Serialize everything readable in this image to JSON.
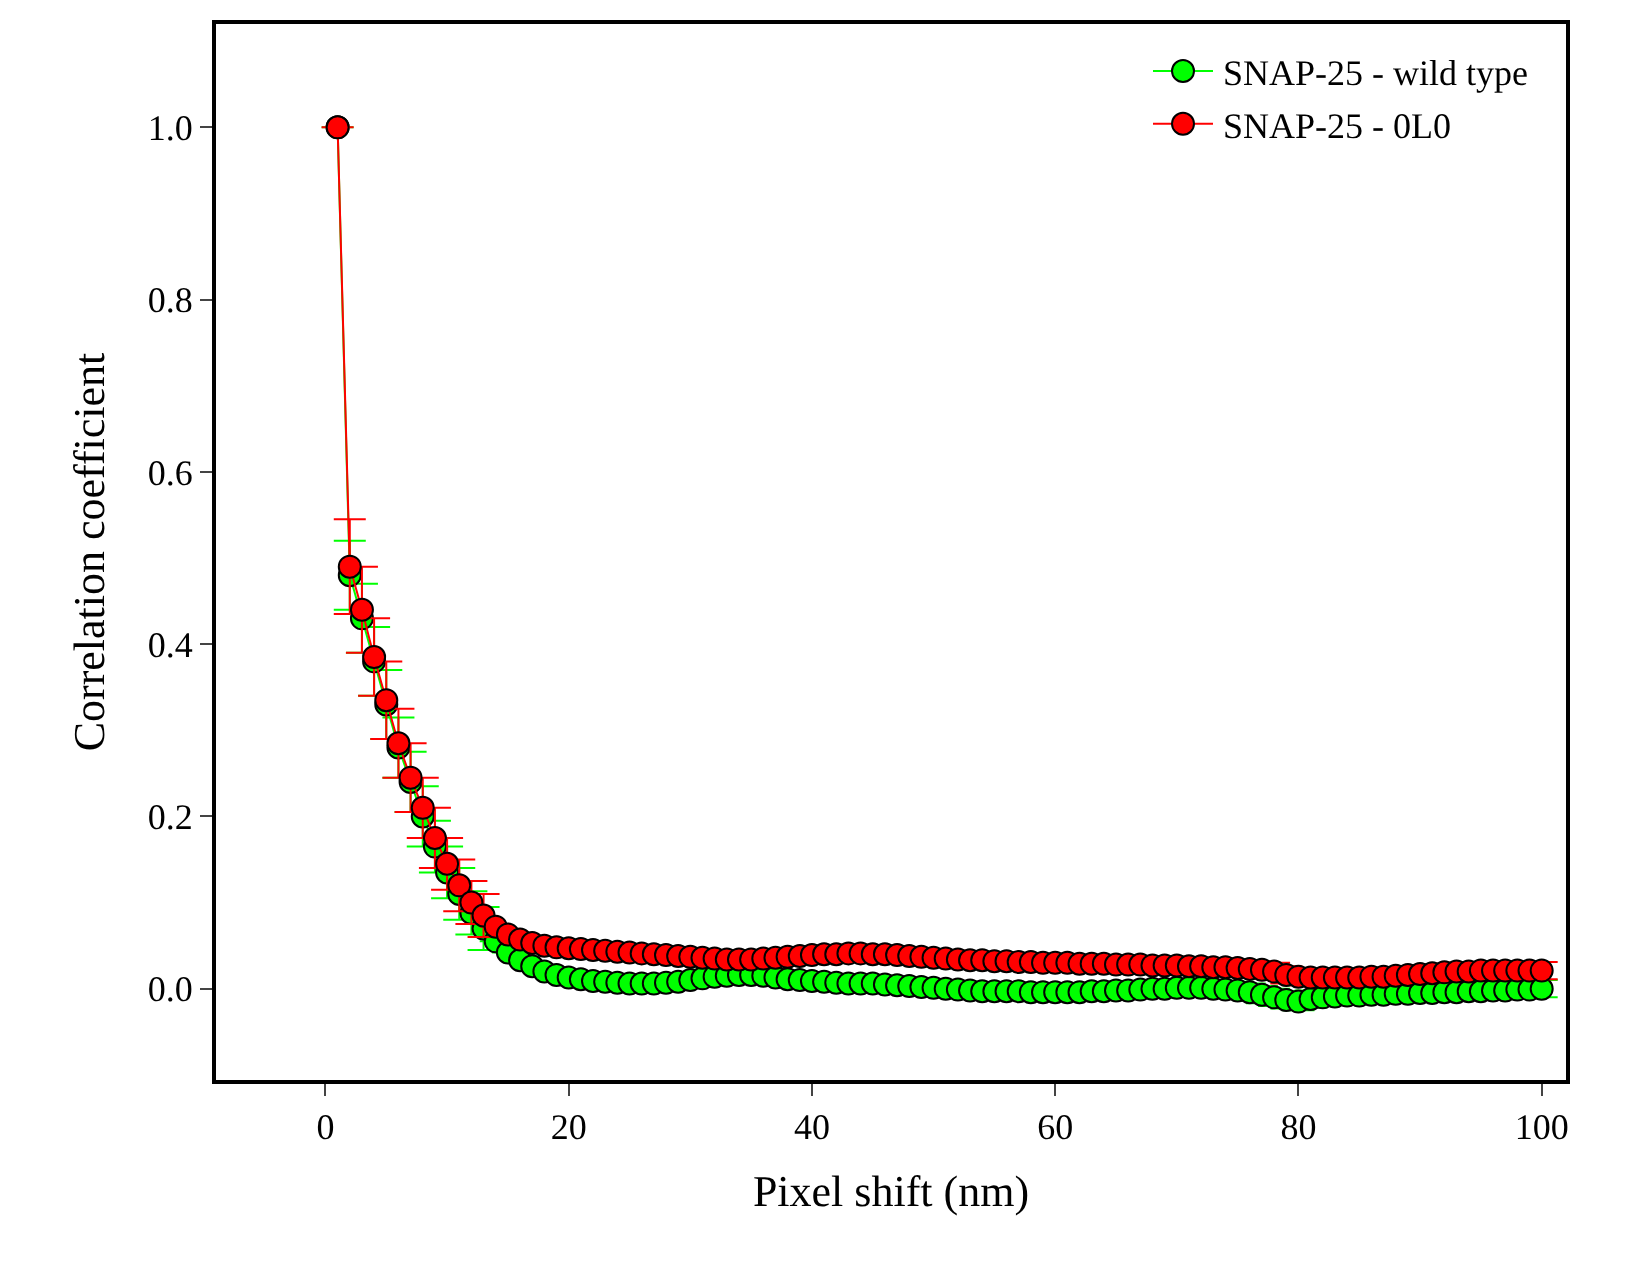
{
  "chart_data": {
    "type": "line",
    "xlabel": "Pixel shift (nm)",
    "ylabel": "Correlation coefficient",
    "x": [
      1,
      2,
      3,
      4,
      5,
      6,
      7,
      8,
      9,
      10,
      11,
      12,
      13,
      14,
      15,
      16,
      17,
      18,
      19,
      20,
      21,
      22,
      23,
      24,
      25,
      26,
      27,
      28,
      29,
      30,
      31,
      32,
      33,
      34,
      35,
      36,
      37,
      38,
      39,
      40,
      41,
      42,
      43,
      44,
      45,
      46,
      47,
      48,
      49,
      50,
      51,
      52,
      53,
      54,
      55,
      56,
      57,
      58,
      59,
      60,
      61,
      62,
      63,
      64,
      65,
      66,
      67,
      68,
      69,
      70,
      71,
      72,
      73,
      74,
      75,
      76,
      77,
      78,
      79,
      80,
      81,
      82,
      83,
      84,
      85,
      86,
      87,
      88,
      89,
      90,
      91,
      92,
      93,
      94,
      95,
      96,
      97,
      98,
      99,
      100
    ],
    "series": [
      {
        "name": "SNAP-25 - wild type",
        "color": "#00ff00",
        "marker": "circle",
        "values": [
          1.0,
          0.48,
          0.43,
          0.38,
          0.33,
          0.28,
          0.24,
          0.2,
          0.165,
          0.135,
          0.11,
          0.088,
          0.07,
          0.055,
          0.042,
          0.033,
          0.026,
          0.02,
          0.016,
          0.013,
          0.011,
          0.009,
          0.008,
          0.007,
          0.006,
          0.006,
          0.006,
          0.007,
          0.008,
          0.01,
          0.012,
          0.014,
          0.015,
          0.016,
          0.016,
          0.015,
          0.013,
          0.011,
          0.01,
          0.009,
          0.008,
          0.007,
          0.006,
          0.006,
          0.006,
          0.005,
          0.004,
          0.003,
          0.002,
          0.001,
          0,
          -0.001,
          -0.002,
          -0.003,
          -0.003,
          -0.003,
          -0.003,
          -0.004,
          -0.004,
          -0.004,
          -0.004,
          -0.004,
          -0.003,
          -0.003,
          -0.002,
          -0.002,
          -0.001,
          0,
          0,
          0.001,
          0.001,
          0.001,
          0,
          -0.001,
          -0.002,
          -0.004,
          -0.007,
          -0.01,
          -0.013,
          -0.015,
          -0.012,
          -0.01,
          -0.009,
          -0.008,
          -0.008,
          -0.007,
          -0.007,
          -0.006,
          -0.006,
          -0.005,
          -0.005,
          -0.004,
          -0.004,
          -0.003,
          -0.003,
          -0.002,
          -0.002,
          -0.001,
          -0.001,
          0
        ],
        "errors": [
          0,
          0.04,
          0.04,
          0.04,
          0.04,
          0.035,
          0.035,
          0.035,
          0.03,
          0.03,
          0.03,
          0.025,
          0.025,
          null,
          null,
          null,
          null,
          null,
          null,
          null,
          null,
          null,
          null,
          null,
          null,
          null,
          null,
          null,
          null,
          null,
          0.01,
          0.01,
          0.01,
          0.01,
          0.01,
          0.01,
          0.01,
          0.01,
          0.01,
          0.01,
          0.01,
          0.01,
          0.01,
          0.01,
          0.01,
          0.01,
          0.01,
          0.01,
          0.01,
          0.01,
          0.01,
          0.01,
          0.01,
          0.01,
          0.01,
          0.01,
          0.01,
          0.01,
          0.01,
          0.01,
          0.01,
          0.01,
          0.01,
          0.01,
          0.01,
          0.01,
          0.01,
          0.01,
          0.01,
          0.01,
          0.01,
          0.01,
          0.01,
          0.01,
          0.01,
          0.01,
          0.01,
          0.01,
          0.01,
          0.01,
          0.01,
          0.01,
          0.01,
          0.01,
          0.01,
          0.01,
          0.01,
          0.01,
          0.01,
          0.01,
          0.01,
          0.01,
          0.01,
          0.01,
          0.01,
          0.01,
          0.01,
          0.01,
          0.01,
          0.01
        ]
      },
      {
        "name": "SNAP-25 - 0L0",
        "color": "#ff0000",
        "marker": "circle",
        "values": [
          1.0,
          0.49,
          0.44,
          0.385,
          0.335,
          0.285,
          0.245,
          0.21,
          0.175,
          0.145,
          0.12,
          0.1,
          0.085,
          0.072,
          0.063,
          0.057,
          0.053,
          0.05,
          0.048,
          0.047,
          0.046,
          0.045,
          0.044,
          0.043,
          0.042,
          0.041,
          0.04,
          0.039,
          0.038,
          0.037,
          0.036,
          0.035,
          0.034,
          0.034,
          0.034,
          0.035,
          0.036,
          0.037,
          0.038,
          0.039,
          0.04,
          0.04,
          0.041,
          0.041,
          0.04,
          0.04,
          0.039,
          0.038,
          0.037,
          0.036,
          0.035,
          0.034,
          0.033,
          0.033,
          0.032,
          0.032,
          0.031,
          0.031,
          0.03,
          0.03,
          0.03,
          0.029,
          0.029,
          0.029,
          0.028,
          0.028,
          0.028,
          0.027,
          0.027,
          0.027,
          0.026,
          0.026,
          0.025,
          0.025,
          0.024,
          0.023,
          0.022,
          0.02,
          0.016,
          0.014,
          0.013,
          0.013,
          0.013,
          0.013,
          0.013,
          0.014,
          0.014,
          0.015,
          0.016,
          0.017,
          0.018,
          0.019,
          0.02,
          0.02,
          0.021,
          0.021,
          0.021,
          0.021,
          0.021,
          0.021
        ],
        "errors": [
          0,
          0.055,
          0.05,
          0.045,
          0.045,
          0.04,
          0.04,
          0.035,
          0.035,
          0.03,
          0.03,
          0.025,
          0.025,
          null,
          null,
          null,
          null,
          null,
          null,
          null,
          null,
          null,
          null,
          null,
          null,
          null,
          null,
          null,
          null,
          null,
          0.01,
          0.01,
          0.01,
          0.01,
          0.01,
          0.01,
          0.01,
          0.01,
          0.01,
          0.01,
          0.01,
          0.01,
          0.01,
          0.01,
          0.01,
          0.01,
          0.01,
          0.01,
          0.01,
          0.01,
          0.01,
          0.01,
          0.01,
          0.01,
          0.01,
          0.01,
          0.01,
          0.01,
          0.01,
          0.01,
          0.01,
          0.01,
          0.01,
          0.01,
          0.01,
          0.01,
          0.01,
          0.01,
          0.01,
          0.01,
          0.01,
          0.01,
          0.01,
          0.01,
          0.01,
          0.01,
          0.01,
          0.01,
          0.01,
          0.01,
          0.01,
          0.01,
          0.01,
          0.01,
          0.01,
          0.01,
          0.01,
          0.01,
          0.01,
          0.01,
          0.01,
          0.01,
          0.01,
          0.01,
          0.01,
          0.01,
          0.01,
          0.01,
          0.01,
          0.01
        ]
      }
    ],
    "xlim": [
      -9,
      102
    ],
    "ylim": [
      -0.106,
      1.12
    ],
    "xticks": [
      0,
      20,
      40,
      60,
      80,
      100
    ],
    "yticks": [
      {
        "value": 0,
        "label": "0.0"
      },
      {
        "value": 0.2,
        "label": "0.2"
      },
      {
        "value": 0.4,
        "label": "0.4"
      },
      {
        "value": 0.6,
        "label": "0.6"
      },
      {
        "value": 0.8,
        "label": "0.8"
      },
      {
        "value": 1,
        "label": "1.0"
      }
    ],
    "legend": "top right"
  }
}
